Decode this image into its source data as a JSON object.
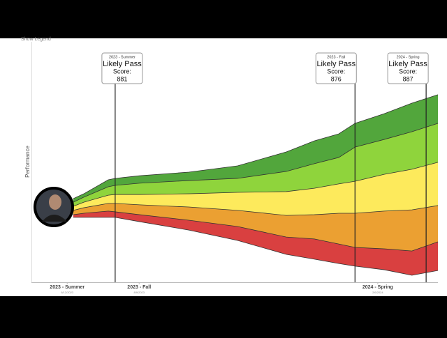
{
  "chart_data": {
    "type": "band",
    "legend_toggle": "Show Legend",
    "ylabel": "Performance",
    "xlim": [
      0,
      100
    ],
    "ylim": [
      0,
      100
    ],
    "x": [
      10.3,
      12.9,
      18.9,
      20.6,
      26.6,
      38.7,
      50.7,
      62.7,
      69.6,
      75.6,
      79.6,
      86.8,
      93.6,
      100
    ],
    "boundaries": [
      [
        27.0,
        27.0,
        27.0,
        27.0,
        25.2,
        21.7,
        17.4,
        11.6,
        9.6,
        7.8,
        6.7,
        5.2,
        2.9,
        4.9
      ],
      [
        28.1,
        28.7,
        29.6,
        29.3,
        28.1,
        25.8,
        23.2,
        18.8,
        18.0,
        15.9,
        14.5,
        13.9,
        13.0,
        16.8
      ],
      [
        29.9,
        31.0,
        32.8,
        32.8,
        32.2,
        31.3,
        29.9,
        27.8,
        28.1,
        28.7,
        28.7,
        29.6,
        30.1,
        31.9
      ],
      [
        31.6,
        33.3,
        36.2,
        36.5,
        36.5,
        36.8,
        37.4,
        37.7,
        39.1,
        40.9,
        42.0,
        44.9,
        47.0,
        49.9
      ],
      [
        33.3,
        35.4,
        39.7,
        40.3,
        41.2,
        42.3,
        43.2,
        46.1,
        49.3,
        51.9,
        56.2,
        59.4,
        62.6,
        66.1
      ],
      [
        34.8,
        36.8,
        42.6,
        43.2,
        44.3,
        45.8,
        48.4,
        54.2,
        58.8,
        61.7,
        66.1,
        70.1,
        74.5,
        78.0
      ]
    ],
    "band_colors": [
      "#d94040",
      "#eba032",
      "#fdea5c",
      "#8fd43c",
      "#52a63c"
    ],
    "xticks": [
      {
        "value": 8.8,
        "label": "2023 - Summer"
      },
      {
        "value": 26.5,
        "label": "2023 - Fall"
      },
      {
        "value": 85.2,
        "label": "2024 - Spring"
      }
    ],
    "xtick_dates": [
      "6/12/2023",
      "8/9/2023",
      "2/6/2024"
    ],
    "markers": [
      {
        "x": 20.6,
        "term": "2023 - Summer",
        "status": "Likely Pass",
        "score_label": "Score:",
        "score": 881
      },
      {
        "x": 79.6,
        "term": "2023 - Fall",
        "status": "Likely Pass",
        "score_label": "Score:",
        "score": 876
      },
      {
        "x": 97.1,
        "term": "2024 - Spring",
        "status": "Likely Pass",
        "score_label": "Score:",
        "score": 887
      }
    ]
  }
}
